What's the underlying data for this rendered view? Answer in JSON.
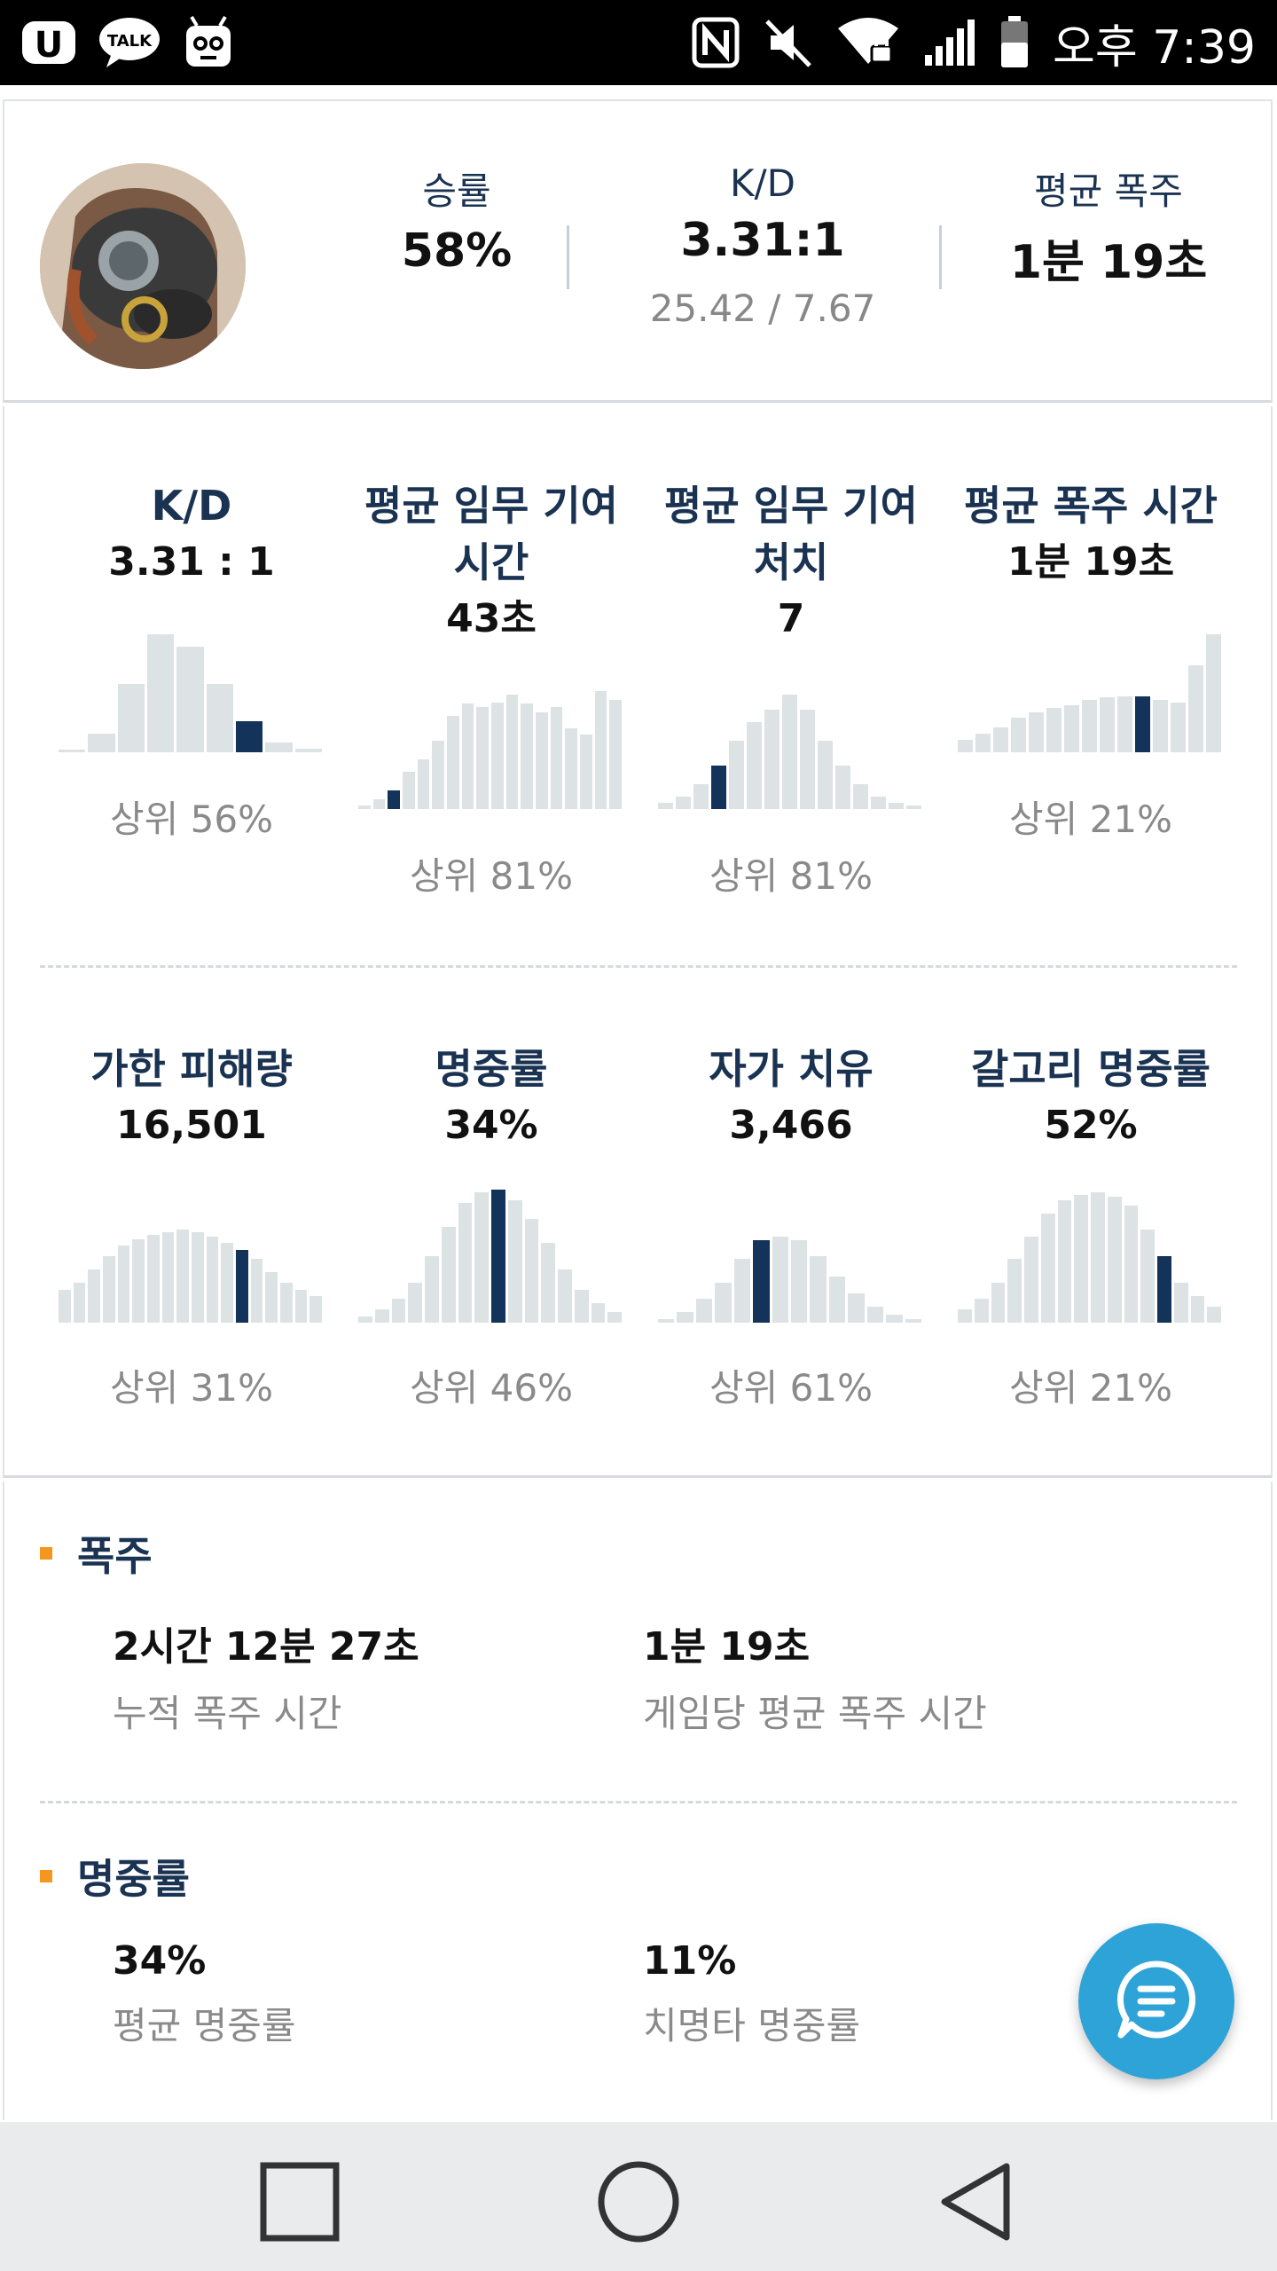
{
  "status_bar": {
    "apps": [
      "u-plus-icon",
      "kakaotalk-icon",
      "character-app-icon"
    ],
    "talk_text": "TALK",
    "time": "오후 7:39"
  },
  "profile": {
    "stats": [
      {
        "label": "승률",
        "value": "58%",
        "sub": ""
      },
      {
        "label": "K/D",
        "value": "3.31:1",
        "sub": "25.42 / 7.67"
      },
      {
        "label": "평균 폭주",
        "value": "1분 19초",
        "sub": ""
      }
    ]
  },
  "stat_cells": [
    {
      "title": "K/D",
      "value": "3.31 : 1",
      "rank": "상위 56%",
      "bars": [
        0.02,
        0.15,
        0.55,
        0.95,
        0.85,
        0.55,
        0.25,
        0.08,
        0.03
      ],
      "highlight": 6
    },
    {
      "title": "평균 임무 기여 시간",
      "value": "43초",
      "rank": "상위 81%",
      "bars": [
        0.03,
        0.08,
        0.15,
        0.3,
        0.4,
        0.55,
        0.75,
        0.85,
        0.82,
        0.86,
        0.92,
        0.85,
        0.78,
        0.82,
        0.65,
        0.6,
        0.95,
        0.88
      ],
      "highlight": 2
    },
    {
      "title": "평균 임무 기여 처치",
      "value": "7",
      "rank": "상위 81%",
      "bars": [
        0.05,
        0.1,
        0.2,
        0.35,
        0.55,
        0.7,
        0.8,
        0.92,
        0.8,
        0.55,
        0.35,
        0.2,
        0.1,
        0.05,
        0.03
      ],
      "highlight": 3
    },
    {
      "title": "평균 폭주 시간",
      "value": "1분 19초",
      "rank": "상위 21%",
      "bars": [
        0.1,
        0.15,
        0.2,
        0.28,
        0.32,
        0.36,
        0.38,
        0.42,
        0.44,
        0.45,
        0.45,
        0.42,
        0.4,
        0.7,
        0.95
      ],
      "highlight": 10
    },
    {
      "title": "가한 피해량",
      "value": "16,501",
      "rank": "상위 31%",
      "bars": [
        0.25,
        0.3,
        0.4,
        0.5,
        0.58,
        0.63,
        0.66,
        0.68,
        0.7,
        0.68,
        0.65,
        0.6,
        0.55,
        0.48,
        0.38,
        0.3,
        0.25,
        0.2
      ],
      "highlight": 12
    },
    {
      "title": "명중률",
      "value": "34%",
      "rank": "상위 46%",
      "bars": [
        0.05,
        0.1,
        0.18,
        0.3,
        0.5,
        0.72,
        0.9,
        0.98,
        1.0,
        0.92,
        0.78,
        0.6,
        0.4,
        0.25,
        0.15,
        0.08
      ],
      "highlight": 8
    },
    {
      "title": "자가 치유",
      "value": "3,466",
      "rank": "상위 61%",
      "bars": [
        0.03,
        0.08,
        0.18,
        0.3,
        0.48,
        0.62,
        0.65,
        0.62,
        0.5,
        0.35,
        0.22,
        0.12,
        0.06,
        0.03
      ],
      "highlight": 5
    },
    {
      "title": "갈고리 명중률",
      "value": "52%",
      "rank": "상위 21%",
      "bars": [
        0.1,
        0.18,
        0.3,
        0.48,
        0.65,
        0.82,
        0.92,
        0.96,
        0.98,
        0.95,
        0.88,
        0.7,
        0.5,
        0.3,
        0.2,
        0.12
      ],
      "highlight": 12
    }
  ],
  "sections": [
    {
      "title": "폭주",
      "items": [
        {
          "value": "2시간 12분 27초",
          "desc": "누적 폭주 시간"
        },
        {
          "value": "1분 19초",
          "desc": "게임당 평균 폭주 시간"
        }
      ]
    },
    {
      "title": "명중률",
      "items": [
        {
          "value": "34%",
          "desc": "평균 명중률"
        },
        {
          "value": "11%",
          "desc": "치명타 명중률"
        }
      ]
    }
  ],
  "fab": {
    "icon": "chat-bubble-icon"
  },
  "nav": {
    "icons": [
      "recent-apps-icon",
      "home-icon",
      "back-icon"
    ]
  }
}
